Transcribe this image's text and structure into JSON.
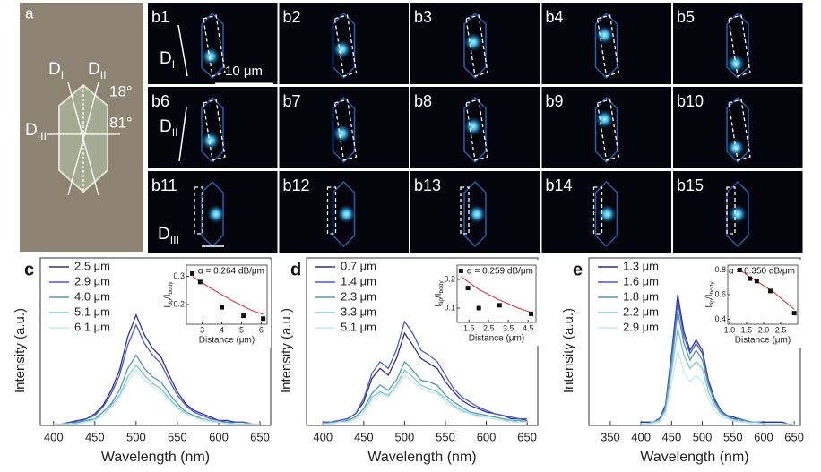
{
  "micrographs": {
    "labels": [
      "a",
      "b1",
      "b2",
      "b3",
      "b4",
      "b5",
      "b6",
      "b7",
      "b8",
      "b9",
      "b10",
      "b11",
      "b12",
      "b13",
      "b14",
      "b15"
    ],
    "directions": [
      [
        "D",
        "I"
      ],
      [
        "D",
        "II"
      ],
      [
        "D",
        "III"
      ]
    ],
    "angles": [
      "18°",
      "81°"
    ],
    "scale_bar": "10 μm"
  },
  "chart_data": [
    {
      "type": "line",
      "label": "c",
      "xlabel": "Wavelength (nm)",
      "ylabel": "Intensity (a.u.)",
      "x": [
        400,
        410,
        420,
        430,
        440,
        450,
        460,
        470,
        480,
        490,
        500,
        510,
        520,
        530,
        540,
        550,
        560,
        570,
        580,
        590,
        600,
        610,
        620,
        630,
        640,
        650
      ],
      "xlim": [
        384,
        663
      ],
      "xticks": [
        400,
        450,
        500,
        550,
        600,
        650
      ],
      "ylim": [
        0,
        1
      ],
      "series": [
        {
          "name": "2.5 μm",
          "color": "#2e3192",
          "values": [
            0.01,
            0.01,
            0.02,
            0.03,
            0.04,
            0.07,
            0.12,
            0.21,
            0.33,
            0.53,
            0.66,
            0.54,
            0.46,
            0.41,
            0.3,
            0.2,
            0.13,
            0.09,
            0.07,
            0.05,
            0.03,
            0.03,
            0.02,
            0.02,
            0.01,
            0.01
          ]
        },
        {
          "name": "2.9 μm",
          "color": "#4b5cc4",
          "values": [
            0.01,
            0.01,
            0.02,
            0.02,
            0.04,
            0.06,
            0.11,
            0.19,
            0.3,
            0.48,
            0.6,
            0.49,
            0.42,
            0.37,
            0.27,
            0.18,
            0.12,
            0.08,
            0.06,
            0.04,
            0.03,
            0.02,
            0.02,
            0.02,
            0.01,
            0.01
          ]
        },
        {
          "name": "4.0 μm",
          "color": "#4f9ab2",
          "values": [
            0.01,
            0.01,
            0.01,
            0.02,
            0.03,
            0.04,
            0.08,
            0.13,
            0.21,
            0.34,
            0.42,
            0.34,
            0.29,
            0.26,
            0.19,
            0.13,
            0.08,
            0.06,
            0.04,
            0.03,
            0.02,
            0.02,
            0.01,
            0.01,
            0.01,
            0.01
          ]
        },
        {
          "name": "5.1 μm",
          "color": "#7fc6cf",
          "values": [
            0.01,
            0.01,
            0.01,
            0.01,
            0.02,
            0.04,
            0.06,
            0.12,
            0.18,
            0.29,
            0.36,
            0.3,
            0.25,
            0.22,
            0.16,
            0.11,
            0.07,
            0.05,
            0.04,
            0.03,
            0.02,
            0.01,
            0.01,
            0.01,
            0.01,
            0.01
          ]
        },
        {
          "name": "6.1 μm",
          "color": "#c4e8ec",
          "values": [
            0.01,
            0.01,
            0.01,
            0.01,
            0.02,
            0.03,
            0.06,
            0.11,
            0.17,
            0.26,
            0.33,
            0.27,
            0.23,
            0.2,
            0.15,
            0.1,
            0.07,
            0.05,
            0.03,
            0.02,
            0.02,
            0.01,
            0.01,
            0.01,
            0.01,
            0.01
          ]
        }
      ],
      "inset": {
        "type": "scatter",
        "annotation": "α = 0.264 dB/μm",
        "xlabel": "Distance (μm)",
        "ylabel": [
          "I",
          "tip",
          "/I",
          "body"
        ],
        "x": [
          2.5,
          2.9,
          4.0,
          5.1,
          6.1
        ],
        "values": [
          0.31,
          0.28,
          0.19,
          0.16,
          0.15
        ],
        "color": "#111111",
        "fit_x": [
          2.5,
          3.5,
          4.5,
          5.5,
          6.1
        ],
        "fit_values": [
          0.3,
          0.255,
          0.215,
          0.18,
          0.165
        ],
        "fit_color": "#d62728",
        "xlim": [
          2.2,
          6.3
        ],
        "ylim": [
          0.13,
          0.34
        ],
        "xticks": [
          3,
          4,
          5,
          6
        ],
        "yticks": [
          0.2,
          0.3
        ]
      }
    },
    {
      "type": "line",
      "label": "d",
      "xlabel": "Wavelength (nm)",
      "ylabel": "Intensity (a.u.)",
      "x": [
        400,
        410,
        420,
        430,
        440,
        450,
        460,
        470,
        480,
        490,
        500,
        510,
        520,
        530,
        540,
        550,
        560,
        570,
        580,
        590,
        600,
        610,
        620,
        630,
        640,
        650
      ],
      "xlim": [
        380,
        663
      ],
      "xticks": [
        400,
        450,
        500,
        550,
        600,
        650
      ],
      "ylim": [
        0,
        1
      ],
      "series": [
        {
          "name": "0.7 μm",
          "color": "#2e3192",
          "values": [
            0.02,
            0.02,
            0.03,
            0.04,
            0.07,
            0.14,
            0.28,
            0.34,
            0.3,
            0.4,
            0.55,
            0.48,
            0.4,
            0.37,
            0.34,
            0.26,
            0.2,
            0.15,
            0.12,
            0.1,
            0.08,
            0.07,
            0.06,
            0.04,
            0.04,
            0.03
          ]
        },
        {
          "name": "1.4 μm",
          "color": "#4b5cc4",
          "values": [
            0.02,
            0.02,
            0.03,
            0.04,
            0.07,
            0.16,
            0.31,
            0.38,
            0.34,
            0.45,
            0.62,
            0.55,
            0.45,
            0.42,
            0.38,
            0.3,
            0.22,
            0.17,
            0.14,
            0.11,
            0.09,
            0.07,
            0.06,
            0.05,
            0.04,
            0.04
          ]
        },
        {
          "name": "2.3 μm",
          "color": "#4f9ab2",
          "values": [
            0.01,
            0.02,
            0.02,
            0.03,
            0.05,
            0.1,
            0.19,
            0.24,
            0.21,
            0.27,
            0.38,
            0.33,
            0.27,
            0.26,
            0.24,
            0.18,
            0.14,
            0.11,
            0.08,
            0.07,
            0.06,
            0.05,
            0.04,
            0.03,
            0.03,
            0.02
          ]
        },
        {
          "name": "3.3 μm",
          "color": "#7fc6cf",
          "values": [
            0.01,
            0.01,
            0.02,
            0.02,
            0.04,
            0.08,
            0.17,
            0.2,
            0.18,
            0.24,
            0.33,
            0.29,
            0.24,
            0.22,
            0.2,
            0.16,
            0.12,
            0.09,
            0.07,
            0.06,
            0.05,
            0.04,
            0.03,
            0.03,
            0.02,
            0.02
          ]
        },
        {
          "name": "5.1 μm",
          "color": "#c4e8ec",
          "values": [
            0.01,
            0.01,
            0.02,
            0.02,
            0.04,
            0.08,
            0.15,
            0.19,
            0.17,
            0.22,
            0.3,
            0.26,
            0.22,
            0.2,
            0.19,
            0.14,
            0.11,
            0.08,
            0.07,
            0.05,
            0.05,
            0.04,
            0.03,
            0.02,
            0.02,
            0.02
          ]
        }
      ],
      "inset": {
        "type": "scatter",
        "annotation": "α = 0.259 dB/μm",
        "xlabel": "Distance (μm)",
        "ylabel": [
          "I",
          "tip",
          "/I",
          "body"
        ],
        "x": [
          1.1,
          1.45,
          2.0,
          3.05,
          4.65
        ],
        "values": [
          0.23,
          0.17,
          0.1,
          0.11,
          0.08
        ],
        "color": "#111111",
        "fit_x": [
          1.1,
          2.0,
          3.0,
          4.0,
          4.65
        ],
        "fit_values": [
          0.21,
          0.165,
          0.13,
          0.1,
          0.085
        ],
        "fit_color": "#d62728",
        "xlim": [
          0.9,
          4.9
        ],
        "ylim": [
          0.05,
          0.25
        ],
        "xticks": [
          1.5,
          2.5,
          3.5,
          4.5
        ],
        "yticks": [
          0.1,
          0.2
        ]
      }
    },
    {
      "type": "line",
      "label": "e",
      "xlabel": "Wavelength (nm)",
      "ylabel": "Intensity (a.u.)",
      "x": [
        400,
        410,
        420,
        430,
        440,
        450,
        460,
        470,
        480,
        490,
        500,
        510,
        520,
        530,
        540,
        550,
        560,
        570,
        580,
        590,
        600,
        610,
        620,
        630,
        640,
        650
      ],
      "xlim": [
        315,
        660
      ],
      "xticks": [
        350,
        400,
        450,
        500,
        550,
        600,
        650
      ],
      "ylim": [
        0,
        1
      ],
      "series": [
        {
          "name": "1.3 μm",
          "color": "#2e3192",
          "values": [
            0.02,
            0.02,
            0.02,
            0.04,
            0.12,
            0.43,
            0.78,
            0.56,
            0.45,
            0.51,
            0.45,
            0.27,
            0.16,
            0.09,
            0.06,
            0.05,
            0.04,
            0.03,
            0.02,
            0.02,
            0.02,
            0.02,
            0.02,
            0.02,
            0.01,
            0.01
          ]
        },
        {
          "name": "1.6 μm",
          "color": "#4b5cc4",
          "values": [
            0.01,
            0.01,
            0.02,
            0.04,
            0.11,
            0.41,
            0.74,
            0.53,
            0.43,
            0.49,
            0.43,
            0.26,
            0.15,
            0.09,
            0.06,
            0.04,
            0.04,
            0.03,
            0.02,
            0.02,
            0.01,
            0.01,
            0.01,
            0.01,
            0.01,
            0.01
          ]
        },
        {
          "name": "1.8 μm",
          "color": "#4f9ab2",
          "values": [
            0.01,
            0.01,
            0.02,
            0.03,
            0.1,
            0.37,
            0.68,
            0.49,
            0.39,
            0.45,
            0.39,
            0.24,
            0.14,
            0.08,
            0.05,
            0.04,
            0.03,
            0.03,
            0.02,
            0.02,
            0.01,
            0.01,
            0.01,
            0.01,
            0.01,
            0.01
          ]
        },
        {
          "name": "2.2 μm",
          "color": "#7fc6cf",
          "values": [
            0.01,
            0.01,
            0.02,
            0.03,
            0.09,
            0.32,
            0.58,
            0.42,
            0.34,
            0.38,
            0.34,
            0.2,
            0.12,
            0.07,
            0.05,
            0.03,
            0.03,
            0.02,
            0.02,
            0.02,
            0.01,
            0.01,
            0.01,
            0.01,
            0.01,
            0.01
          ]
        },
        {
          "name": "2.9 μm",
          "color": "#c4e8ec",
          "values": [
            0.01,
            0.01,
            0.01,
            0.02,
            0.07,
            0.25,
            0.45,
            0.32,
            0.26,
            0.3,
            0.26,
            0.16,
            0.09,
            0.05,
            0.04,
            0.03,
            0.02,
            0.02,
            0.01,
            0.01,
            0.01,
            0.01,
            0.01,
            0.01,
            0.01,
            0.01
          ]
        }
      ],
      "inset": {
        "type": "scatter",
        "annotation": "α = 0.350 dB/μm",
        "xlabel": "Distance (μm)",
        "ylabel": [
          "I",
          "tip",
          "/I",
          "body"
        ],
        "x": [
          1.3,
          1.6,
          1.8,
          2.2,
          2.9
        ],
        "values": [
          0.8,
          0.73,
          0.71,
          0.63,
          0.45
        ],
        "color": "#111111",
        "fit_x": [
          1.3,
          1.8,
          2.3,
          2.9
        ],
        "fit_values": [
          0.8,
          0.71,
          0.62,
          0.48
        ],
        "fit_color": "#d62728",
        "xlim": [
          0.95,
          3.0
        ],
        "ylim": [
          0.36,
          0.84
        ],
        "xticks": [
          {
            "value": 1,
            "label": "1.0"
          },
          1.5,
          {
            "value": 2,
            "label": "2.0"
          },
          2.5
        ],
        "yticks": [
          0.4,
          0.6,
          0.8
        ]
      }
    }
  ]
}
